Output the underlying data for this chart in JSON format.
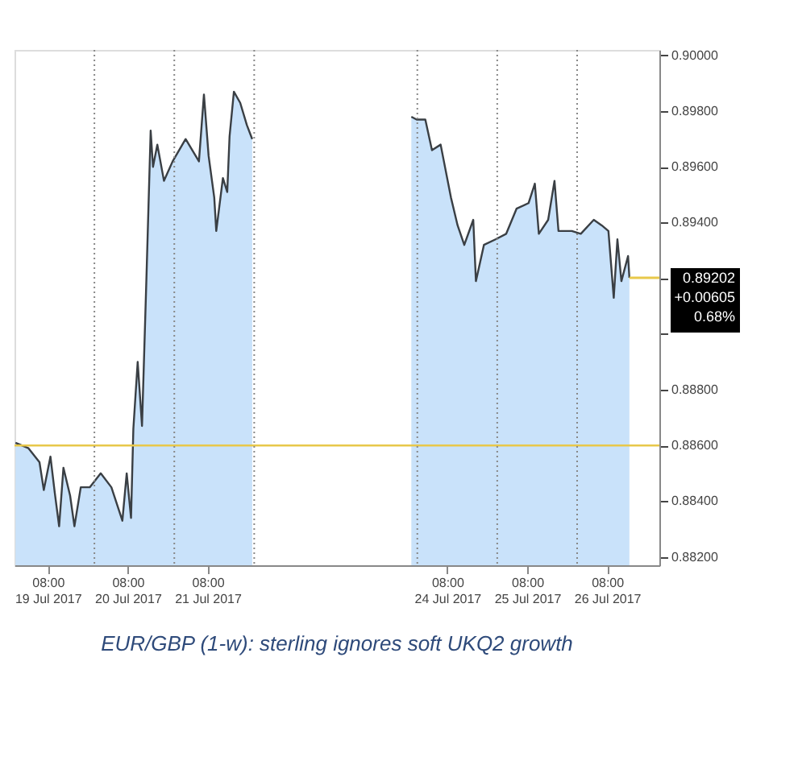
{
  "chart_data": {
    "type": "area",
    "x": [
      "2017-07-18T22:18",
      "2017-07-19T02:12",
      "2017-07-19T05:30",
      "2017-07-19T06:48",
      "2017-07-19T08:48",
      "2017-07-19T10:06",
      "2017-07-19T11:24",
      "2017-07-19T12:42",
      "2017-07-19T14:42",
      "2017-07-19T16:00",
      "2017-07-19T17:54",
      "2017-07-19T20:36",
      "2017-07-19T23:54",
      "2017-07-20T03:06",
      "2017-07-20T06:24",
      "2017-07-20T07:42",
      "2017-07-20T09:00",
      "2017-07-20T09:42",
      "2017-07-20T11:00",
      "2017-07-20T12:18",
      "2017-07-20T13:36",
      "2017-07-20T14:54",
      "2017-07-20T15:36",
      "2017-07-20T16:54",
      "2017-07-20T18:54",
      "2017-07-20T21:30",
      "2017-07-21T01:24",
      "2017-07-21T05:24",
      "2017-07-21T06:54",
      "2017-07-21T08:18",
      "2017-07-21T10:00",
      "2017-07-21T10:36",
      "2017-07-21T12:36",
      "2017-07-21T13:54",
      "2017-07-21T14:36",
      "2017-07-21T15:54",
      "2017-07-21T17:48",
      "2017-07-21T19:48",
      "2017-07-21T21:24",
      "2017-07-22T12:00",
      "2017-07-23T21:12",
      "2017-07-23T22:48",
      "2017-07-24T01:24",
      "2017-07-24T03:24",
      "2017-07-24T06:00",
      "2017-07-24T09:06",
      "2017-07-24T11:06",
      "2017-07-24T13:06",
      "2017-07-24T15:48",
      "2017-07-24T16:36",
      "2017-07-24T19:00",
      "2017-07-24T22:30",
      "2017-07-25T01:42",
      "2017-07-25T04:48",
      "2017-07-25T08:24",
      "2017-07-25T10:18",
      "2017-07-25T11:30",
      "2017-07-25T14:18",
      "2017-07-25T16:12",
      "2017-07-25T17:24",
      "2017-07-25T21:24",
      "2017-07-26T00:06",
      "2017-07-26T04:00",
      "2017-07-26T06:24",
      "2017-07-26T08:24",
      "2017-07-26T10:00",
      "2017-07-26T11:06",
      "2017-07-26T12:18",
      "2017-07-26T14:18",
      "2017-07-26T14:42"
    ],
    "series": [
      {
        "color": "#3a3f44",
        "values": [
          0.8861,
          0.8859,
          0.8854,
          0.8844,
          0.8856,
          0.8843,
          0.8831,
          0.8852,
          0.8842,
          0.8831,
          0.8845,
          0.8845,
          0.885,
          0.8845,
          0.8833,
          0.885,
          0.8834,
          0.8866,
          0.889,
          0.8867,
          0.8919,
          0.8973,
          0.896,
          0.8968,
          0.8955,
          0.8962,
          0.897,
          0.8962,
          0.8986,
          0.8964,
          0.8949,
          0.8937,
          0.8956,
          0.8951,
          0.8971,
          0.8987,
          0.8983,
          0.8975,
          0.897,
          null,
          0.8978,
          0.8977,
          0.8977,
          0.8966,
          0.8968,
          0.8949,
          0.8939,
          0.8932,
          0.8941,
          0.8919,
          0.8932,
          0.8934,
          0.8936,
          0.8945,
          0.8947,
          0.8954,
          0.8936,
          0.8941,
          0.8955,
          0.8937,
          0.8937,
          0.8936,
          0.8941,
          0.8939,
          0.8937,
          0.8913,
          0.8934,
          0.8919,
          0.8928,
          0.89202
        ]
      }
    ],
    "xlim": [
      "2017-07-18T22:00",
      "2017-07-26T23:42"
    ],
    "xticks": [
      {
        "value": "2017-07-19T08:00",
        "label": "08:00 19 Jul 2017"
      },
      {
        "value": "2017-07-20T08:00",
        "label": "08:00 20 Jul 2017"
      },
      {
        "value": "2017-07-21T08:00",
        "label": "08:00 21 Jul 2017"
      },
      {
        "value": "2017-07-24T08:00",
        "label": "08:00 24 Jul 2017"
      },
      {
        "value": "2017-07-25T08:00",
        "label": "08:00 25 Jul 2017"
      },
      {
        "value": "2017-07-26T08:00",
        "label": "08:00 26 Jul 2017"
      }
    ],
    "ylim": [
      0.8817,
      0.9002
    ],
    "yticks": [
      {
        "value": 0.882,
        "label": "0.88200"
      },
      {
        "value": 0.884,
        "label": "0.88400"
      },
      {
        "value": 0.886,
        "label": "0.88600"
      },
      {
        "value": 0.888,
        "label": "0.88800"
      },
      {
        "value": 0.89,
        "label": null
      },
      {
        "value": 0.892,
        "label": null
      },
      {
        "value": 0.894,
        "label": "0.89400"
      },
      {
        "value": 0.896,
        "label": "0.89600"
      },
      {
        "value": 0.898,
        "label": "0.89800"
      },
      {
        "value": 0.9,
        "label": "0.90000"
      }
    ],
    "ref_lines": [
      {
        "axis": "y",
        "value": 0.886,
        "color": "#e8c84a",
        "line_style": "solid"
      },
      {
        "axis": "x",
        "value": "2017-07-19T22:00",
        "color": "#888888",
        "line_style": "dotted"
      },
      {
        "axis": "x",
        "value": "2017-07-20T22:00",
        "color": "#888888",
        "line_style": "dotted"
      },
      {
        "axis": "x",
        "value": "2017-07-21T22:00",
        "color": "#888888",
        "line_style": "dotted"
      },
      {
        "axis": "x",
        "value": "2017-07-23T23:00",
        "color": "#888888",
        "line_style": "dotted"
      },
      {
        "axis": "x",
        "value": "2017-07-24T23:00",
        "color": "#888888",
        "line_style": "dotted"
      },
      {
        "axis": "x",
        "value": "2017-07-25T23:00",
        "color": "#888888",
        "line_style": "dotted"
      }
    ],
    "annotations": [
      "0.89202",
      "+0.00605",
      "0.68%",
      "EUR/GBP (1-w): sterling ignores soft UKQ2 growth"
    ],
    "grid": false
  }
}
